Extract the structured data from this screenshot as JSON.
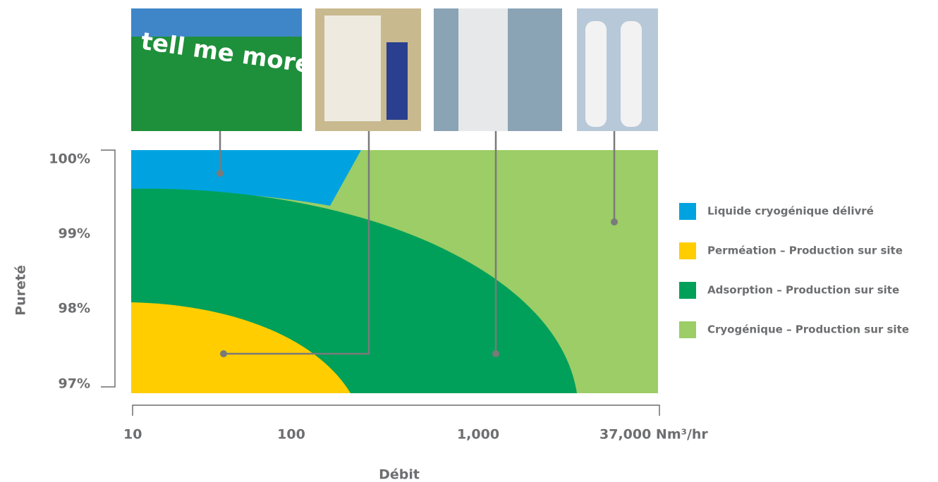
{
  "y_axis": {
    "title": "Pureté",
    "labels": [
      "100%",
      "99%",
      "98%",
      "97%"
    ]
  },
  "x_axis": {
    "title": "Débit",
    "labels": [
      "10",
      "100",
      "1,000",
      "37,000 Nm³/hr"
    ]
  },
  "legend": [
    {
      "label": "Liquide cryogénique délivré",
      "color": "#00a3e0"
    },
    {
      "label": "Perméation – Production sur site",
      "color": "#ffcd00"
    },
    {
      "label": "Adsorption – Production sur site",
      "color": "#00a05a"
    },
    {
      "label": "Cryogénique – Production sur site",
      "color": "#9ccd66"
    }
  ]
}
